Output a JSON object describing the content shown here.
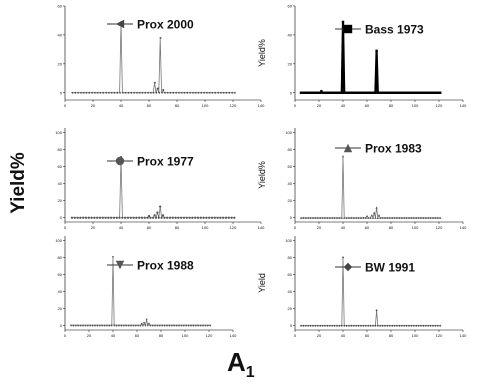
{
  "figure": {
    "ylabel": "Yield%",
    "xlabel_main": "A",
    "xlabel_sub": "1"
  },
  "chart_data": [
    {
      "type": "line",
      "series": [
        {
          "name": "Prox 2000",
          "marker": "triangle-left"
        }
      ],
      "x": [
        40,
        64,
        66,
        68,
        70
      ],
      "values": [
        49,
        7,
        3,
        38,
        2
      ],
      "baseline_x": [
        5,
        122
      ],
      "xlim": [
        0,
        140
      ],
      "ylim": [
        -5,
        60
      ],
      "xticks": [
        0,
        20,
        40,
        60,
        80,
        100,
        120,
        140
      ],
      "yticks": [
        0,
        20,
        40,
        60
      ],
      "ylabel": ""
    },
    {
      "type": "line",
      "series": [
        {
          "name": "Bass 1973",
          "marker": "square"
        }
      ],
      "x": [
        22,
        40,
        68
      ],
      "values": [
        1,
        49,
        29
      ],
      "baseline_x": [
        5,
        122
      ],
      "xlim": [
        0,
        140
      ],
      "ylim": [
        -5,
        60
      ],
      "xticks": [
        0,
        20,
        40,
        60,
        80,
        100,
        120,
        140
      ],
      "yticks": [
        0,
        20,
        40,
        60
      ],
      "ylabel": "Yield%"
    },
    {
      "type": "line",
      "series": [
        {
          "name": "Prox 1977",
          "marker": "circle"
        }
      ],
      "x": [
        40,
        60,
        64,
        66,
        68,
        70
      ],
      "values": [
        71,
        2,
        3,
        6,
        13,
        3
      ],
      "baseline_x": [
        5,
        122
      ],
      "xlim": [
        0,
        140
      ],
      "ylim": [
        -5,
        105
      ],
      "xticks": [
        0,
        20,
        40,
        60,
        80,
        100,
        120,
        140
      ],
      "yticks": [
        0,
        20,
        40,
        60,
        80,
        100
      ],
      "ylabel": ""
    },
    {
      "type": "line",
      "series": [
        {
          "name": "Prox 1983",
          "marker": "triangle-up"
        }
      ],
      "x": [
        40,
        60,
        64,
        66,
        68,
        70
      ],
      "values": [
        72,
        2,
        3,
        6,
        12,
        3
      ],
      "baseline_x": [
        5,
        122
      ],
      "xlim": [
        0,
        140
      ],
      "ylim": [
        -5,
        105
      ],
      "xticks": [
        0,
        20,
        40,
        60,
        80,
        100,
        120,
        140
      ],
      "yticks": [
        0,
        20,
        40,
        60,
        80,
        100
      ],
      "ylabel": "Yield%"
    },
    {
      "type": "line",
      "series": [
        {
          "name": "Prox 1988",
          "marker": "triangle-down"
        }
      ],
      "x": [
        40,
        64,
        66,
        68,
        70
      ],
      "values": [
        80,
        2,
        3,
        7,
        2
      ],
      "baseline_x": [
        5,
        122
      ],
      "xlim": [
        0,
        140
      ],
      "ylim": [
        -5,
        105
      ],
      "xticks": [
        0,
        20,
        40,
        60,
        80,
        100,
        120,
        140
      ],
      "yticks": [
        0,
        20,
        40,
        60,
        80,
        100
      ],
      "ylabel": ""
    },
    {
      "type": "line",
      "series": [
        {
          "name": "BW 1991",
          "marker": "diamond"
        }
      ],
      "x": [
        40,
        68
      ],
      "values": [
        80,
        18
      ],
      "baseline_x": [
        5,
        122
      ],
      "xlim": [
        0,
        140
      ],
      "ylim": [
        -5,
        105
      ],
      "xticks": [
        0,
        20,
        40,
        60,
        80,
        100,
        120,
        140
      ],
      "yticks": [
        0,
        20,
        40,
        60,
        80,
        100
      ],
      "ylabel": "Yield"
    }
  ]
}
